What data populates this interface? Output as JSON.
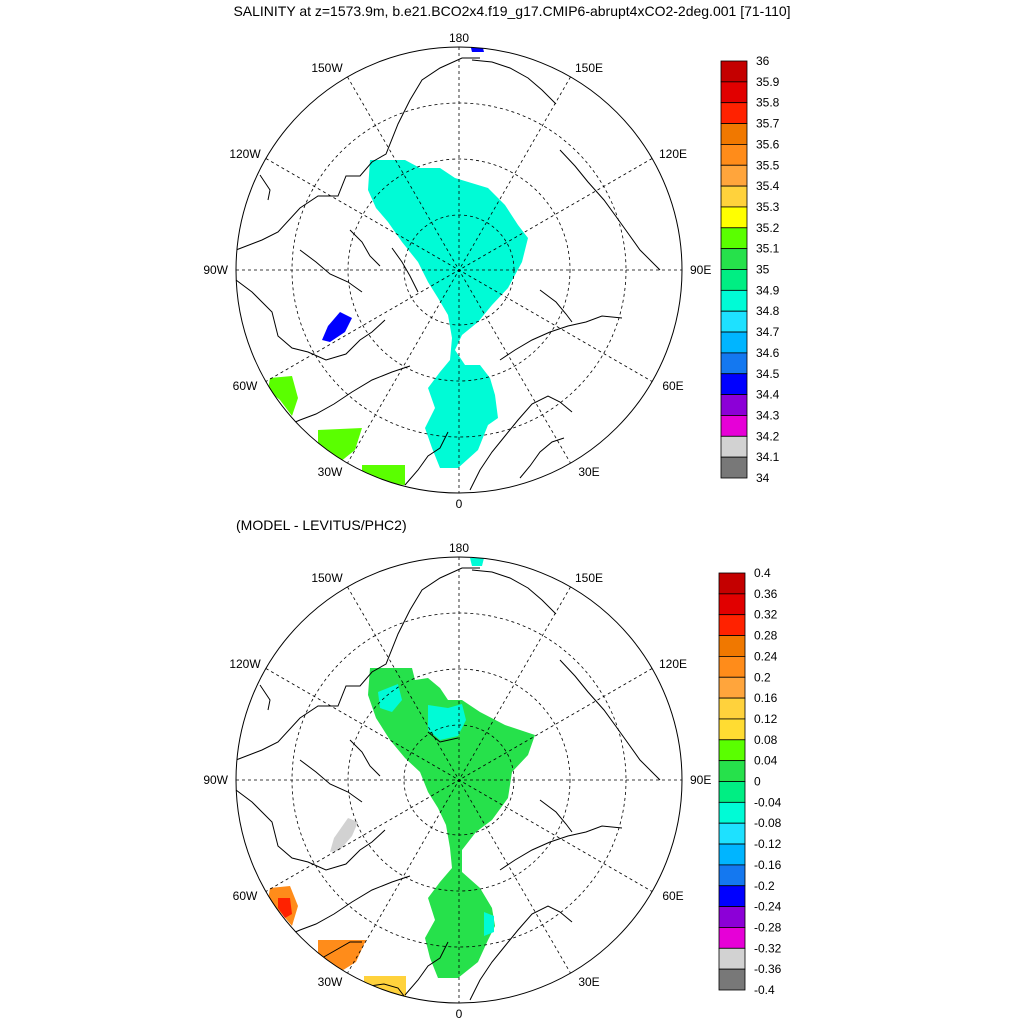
{
  "title": "SALINITY at z=1573.9m, b.e21.BCO2x4.f19_g17.CMIP6-abrupt4xCO2-2deg.001 [71-110]",
  "subtitle": "(MODEL - LEVITUS/PHC2)",
  "panels": [
    {
      "id": "top",
      "lon_labels": {
        "top": "180",
        "bottom": "0",
        "left": "90W",
        "right": "90E",
        "ul_150": "150W",
        "ul_120": "120W",
        "ur_150": "150E",
        "ur_120": "120E",
        "ll_60": "60W",
        "ll_30": "30W",
        "lr_60": "60E",
        "lr_30": "30E"
      },
      "colorbar": {
        "labels": [
          "36",
          "35.9",
          "35.8",
          "35.7",
          "35.6",
          "35.5",
          "35.4",
          "35.3",
          "35.2",
          "35.1",
          "35",
          "34.9",
          "34.8",
          "34.7",
          "34.6",
          "34.5",
          "34.4",
          "34.3",
          "34.2",
          "34.1",
          "34"
        ],
        "colors": [
          "#c40000",
          "#e10000",
          "#ff2200",
          "#f07800",
          "#ff8c1a",
          "#ffa53c",
          "#ffd23c",
          "#ffff00",
          "#5aff00",
          "#26e14b",
          "#00ee83",
          "#00fbd6",
          "#1ee1ff",
          "#00b5ff",
          "#1478f0",
          "#0000ff",
          "#8c00d7",
          "#e600d7",
          "#d2d2d2",
          "#787878"
        ]
      },
      "fills": [
        {
          "name": "main-region",
          "color": "#00fbd6"
        },
        {
          "name": "blue-patch",
          "color": "#0000ff"
        },
        {
          "name": "top-blue-patch",
          "color": "#0000ff"
        },
        {
          "name": "green-patch-60w",
          "color": "#5aff00"
        },
        {
          "name": "green-patch-45w",
          "color": "#5aff00"
        },
        {
          "name": "green-patch-30w",
          "color": "#5aff00"
        }
      ]
    },
    {
      "id": "bottom",
      "lon_labels": {
        "top": "180",
        "bottom": "0",
        "left": "90W",
        "right": "90E",
        "ul_150": "150W",
        "ul_120": "120W",
        "ur_150": "150E",
        "ur_120": "120E",
        "ll_60": "60W",
        "ll_30": "30W",
        "lr_60": "60E",
        "lr_30": "30E"
      },
      "colorbar": {
        "labels": [
          "0.4",
          "0.36",
          "0.32",
          "0.28",
          "0.24",
          "0.2",
          "0.16",
          "0.12",
          "0.08",
          "0.04",
          "0",
          "-0.04",
          "-0.08",
          "-0.12",
          "-0.16",
          "-0.2",
          "-0.24",
          "-0.28",
          "-0.32",
          "-0.36",
          "-0.4"
        ],
        "colors": [
          "#c40000",
          "#e10000",
          "#ff2200",
          "#f07800",
          "#ff8c1a",
          "#ffa53c",
          "#ffd23c",
          "#ffdc32",
          "#5aff00",
          "#26e14b",
          "#00ee83",
          "#00fbd6",
          "#1ee1ff",
          "#00b5ff",
          "#1478f0",
          "#0000ff",
          "#8c00d7",
          "#e600d7",
          "#d2d2d2",
          "#787878"
        ]
      },
      "fills": [
        {
          "name": "main-region",
          "color": "#26e14b"
        },
        {
          "name": "cyan-patch-a",
          "color": "#00fbd6"
        },
        {
          "name": "cyan-patch-b",
          "color": "#00fbd6"
        },
        {
          "name": "gray-patch",
          "color": "#d2d2d2"
        },
        {
          "name": "orange-patch-60w",
          "color": "#ff8c1a"
        },
        {
          "name": "red-patch-60w",
          "color": "#ff2200"
        },
        {
          "name": "orange-patch-45w",
          "color": "#ff8c1a"
        },
        {
          "name": "yellow-patch-30w",
          "color": "#ffd23c"
        }
      ]
    }
  ]
}
